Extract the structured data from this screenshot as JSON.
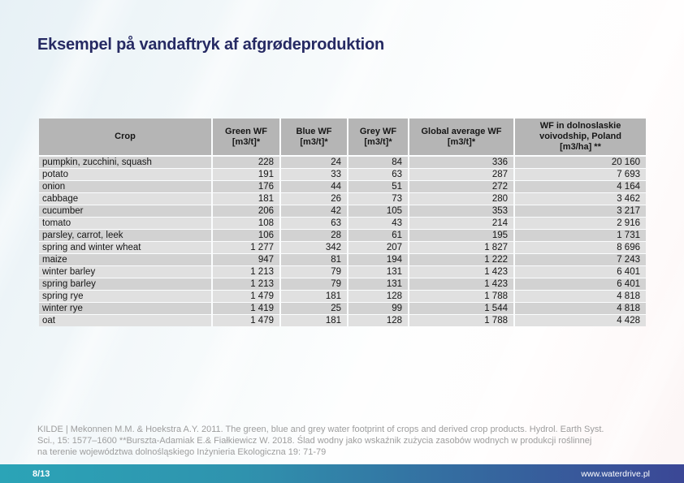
{
  "title": "Eksempel på vandaftryk af afgrødeproduktion",
  "table": {
    "columns": [
      "Crop",
      "Green WF\n[m3/t]*",
      "Blue WF\n[m3/t]*",
      "Grey WF\n[m3/t]*",
      "Global average WF\n[m3/t]*",
      "WF in  dolnoslaskie\nvoivodship, Poland\n[m3/ha] **"
    ],
    "rows": [
      [
        "pumpkin, zucchini, squash",
        "228",
        "24",
        "84",
        "336",
        "20 160"
      ],
      [
        "potato",
        "191",
        "33",
        "63",
        "287",
        "7 693"
      ],
      [
        "onion",
        "176",
        "44",
        "51",
        "272",
        "4 164"
      ],
      [
        "cabbage",
        "181",
        "26",
        "73",
        "280",
        "3 462"
      ],
      [
        "cucumber",
        "206",
        "42",
        "105",
        "353",
        "3 217"
      ],
      [
        "tomato",
        "108",
        "63",
        "43",
        "214",
        "2 916"
      ],
      [
        "parsley, carrot, leek",
        "106",
        "28",
        "61",
        "195",
        "1 731"
      ],
      [
        "spring and winter wheat",
        "1 277",
        "342",
        "207",
        "1 827",
        "8 696"
      ],
      [
        "maize",
        "947",
        "81",
        "194",
        "1 222",
        "7 243"
      ],
      [
        "winter barley",
        "1 213",
        "79",
        "131",
        "1 423",
        "6 401"
      ],
      [
        "spring barley",
        "1 213",
        "79",
        "131",
        "1 423",
        "6 401"
      ],
      [
        "spring rye",
        "1 479",
        "181",
        "128",
        "1 788",
        "4 818"
      ],
      [
        "winter rye",
        "1 419",
        "25",
        "99",
        "1 544",
        "4 818"
      ],
      [
        "oat",
        "1 479",
        "181",
        "128",
        "1 788",
        "4 428"
      ]
    ]
  },
  "citation": {
    "lines": [
      "KILDE | Mekonnen M.M. & Hoekstra A.Y. 2011. The green, blue and grey water footprint of crops and derived crop products. Hydrol. Earth Syst.",
      "Sci., 15: 1577–1600 **Burszta-Adamiak E.& Fiałkiewicz W. 2018. Ślad wodny jako wskaźnik zużycia zasobów wodnych w produkcji roślinnej",
      "na terenie województwa dolnośląskiego  Inżynieria Ekologiczna 19: 71-79"
    ]
  },
  "footer": {
    "page_number": "8/13",
    "website": "www.waterdrive.pl"
  },
  "colors": {
    "title": "#262a63",
    "table_header_bg": "#b5b5b5",
    "row_odd_bg": "#d2d2d2",
    "row_even_bg": "#e0e0e0",
    "citation_text": "#9d9d9d",
    "bar_gradient_start": "#2ba4b7",
    "bar_gradient_end": "#3b4796"
  }
}
